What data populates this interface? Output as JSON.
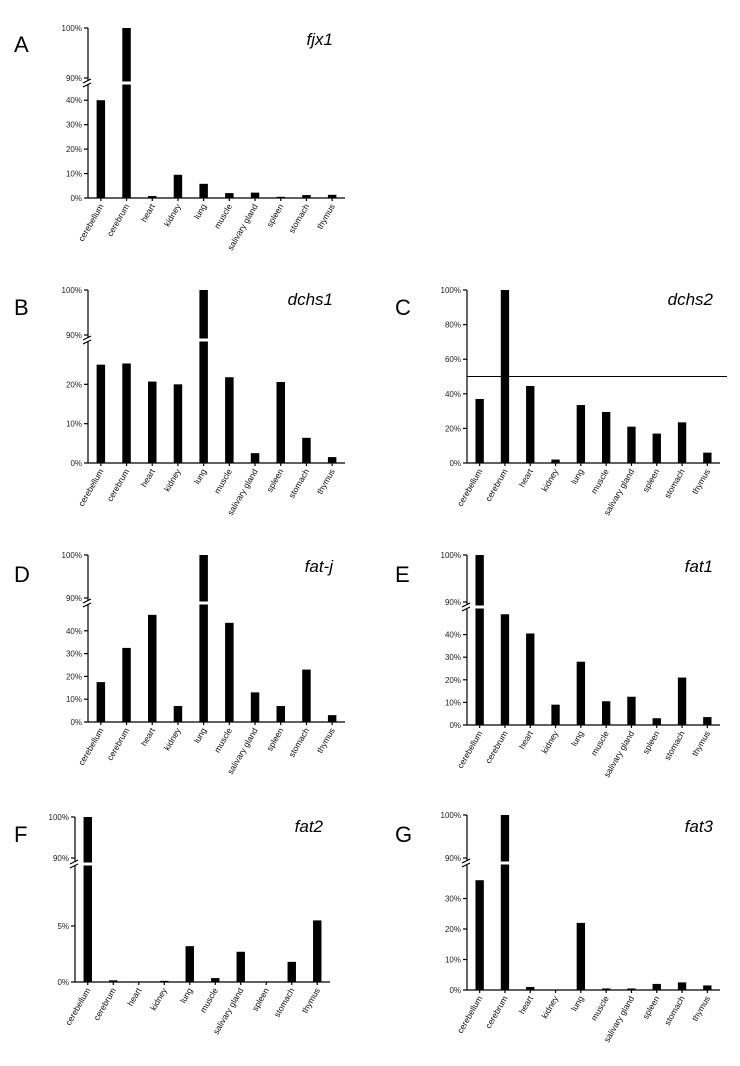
{
  "chart_data": [
    {
      "panel": "A",
      "title": "fjx1",
      "type": "bar",
      "categories": [
        "cerebellum",
        "cerebrum",
        "heart",
        "kidney",
        "lung",
        "muscle",
        "salivary gland",
        "spleen",
        "stomach",
        "thymus"
      ],
      "values": [
        40,
        100,
        0.8,
        9.5,
        5.8,
        2,
        2.2,
        0.5,
        1.2,
        1.3
      ],
      "ylabel": "",
      "xlabel": "",
      "axis_break": true,
      "lower_range": [
        0,
        45
      ],
      "upper_range": [
        90,
        100
      ],
      "lower_ticks": [
        "0%",
        "10%",
        "20%",
        "30%",
        "40%"
      ],
      "upper_ticks": [
        "90%",
        "100%"
      ]
    },
    {
      "panel": "B",
      "title": "dchs1",
      "type": "bar",
      "categories": [
        "cerebellum",
        "cerebrum",
        "heart",
        "kidney",
        "lung",
        "muscle",
        "salivary gland",
        "spleen",
        "stomach",
        "thymus"
      ],
      "values": [
        25,
        25.3,
        20.7,
        20,
        100,
        21.8,
        2.5,
        20.6,
        6.4,
        1.5
      ],
      "ylabel": "",
      "xlabel": "",
      "axis_break": true,
      "lower_range": [
        0,
        30
      ],
      "upper_range": [
        90,
        100
      ],
      "lower_ticks": [
        "0%",
        "10%",
        "20%"
      ],
      "upper_ticks": [
        "90%",
        "100%"
      ]
    },
    {
      "panel": "C",
      "title": "dchs2",
      "type": "bar",
      "categories": [
        "cerebellum",
        "cerebrum",
        "heart",
        "kidney",
        "lung",
        "muscle",
        "salivary gland",
        "spleen",
        "stomach",
        "thymus"
      ],
      "values": [
        37,
        100,
        44.5,
        2,
        33.5,
        29.5,
        21,
        17,
        23.5,
        6
      ],
      "ylabel": "",
      "xlabel": "",
      "axis_break": false,
      "ylim": [
        0,
        100
      ],
      "ticks": [
        "0%",
        "20%",
        "40%",
        "60%",
        "80%",
        "100%"
      ],
      "reference_line": 50
    },
    {
      "panel": "D",
      "title": "fat-j",
      "type": "bar",
      "categories": [
        "cerebellum",
        "cerebrum",
        "heart",
        "kidney",
        "lung",
        "muscle",
        "salivary gland",
        "spleen",
        "stomach",
        "thymus"
      ],
      "values": [
        17.5,
        32.5,
        47,
        7,
        100,
        43.5,
        13,
        7,
        23,
        3
      ],
      "ylabel": "",
      "xlabel": "",
      "axis_break": true,
      "lower_range": [
        0,
        50
      ],
      "upper_range": [
        90,
        100
      ],
      "lower_ticks": [
        "0%",
        "10%",
        "20%",
        "30%",
        "40%"
      ],
      "upper_ticks": [
        "90%",
        "100%"
      ]
    },
    {
      "panel": "E",
      "title": "fat1",
      "type": "bar",
      "categories": [
        "cerebellum",
        "cerebrum",
        "heart",
        "kidney",
        "lung",
        "muscle",
        "salivary gland",
        "spleen",
        "stomach",
        "thymus"
      ],
      "values": [
        100,
        49,
        40.5,
        9,
        28,
        10.5,
        12.5,
        3,
        21,
        3.5
      ],
      "ylabel": "",
      "xlabel": "",
      "axis_break": true,
      "lower_range": [
        0,
        50
      ],
      "upper_range": [
        90,
        100
      ],
      "lower_ticks": [
        "0%",
        "10%",
        "20%",
        "30%",
        "40%"
      ],
      "upper_ticks": [
        "90%",
        "100%"
      ]
    },
    {
      "panel": "F",
      "title": "fat2",
      "type": "bar",
      "categories": [
        "cerebellum",
        "cerebrum",
        "heart",
        "kidney",
        "lung",
        "muscle",
        "salivary gland",
        "spleen",
        "stomach",
        "thymus"
      ],
      "values": [
        100,
        0.15,
        0.05,
        0.1,
        3.2,
        0.35,
        2.7,
        0.05,
        1.8,
        5.5
      ],
      "ylabel": "",
      "xlabel": "",
      "axis_break": true,
      "lower_range": [
        0,
        10
      ],
      "upper_range": [
        90,
        100
      ],
      "lower_ticks": [
        "0%",
        "5%"
      ],
      "upper_ticks": [
        "90%",
        "100%"
      ]
    },
    {
      "panel": "G",
      "title": "fat3",
      "type": "bar",
      "categories": [
        "cerebellum",
        "cerebrum",
        "heart",
        "kidney",
        "lung",
        "muscle",
        "salivary gland",
        "spleen",
        "stomach",
        "thymus"
      ],
      "values": [
        36,
        100,
        1,
        0,
        22,
        0.5,
        0.5,
        2,
        2.5,
        1.5
      ],
      "ylabel": "",
      "xlabel": "",
      "axis_break": true,
      "lower_range": [
        0,
        40
      ],
      "upper_range": [
        90,
        100
      ],
      "lower_ticks": [
        "0%",
        "10%",
        "20%",
        "30%"
      ],
      "upper_ticks": [
        "90%",
        "100%"
      ]
    }
  ]
}
